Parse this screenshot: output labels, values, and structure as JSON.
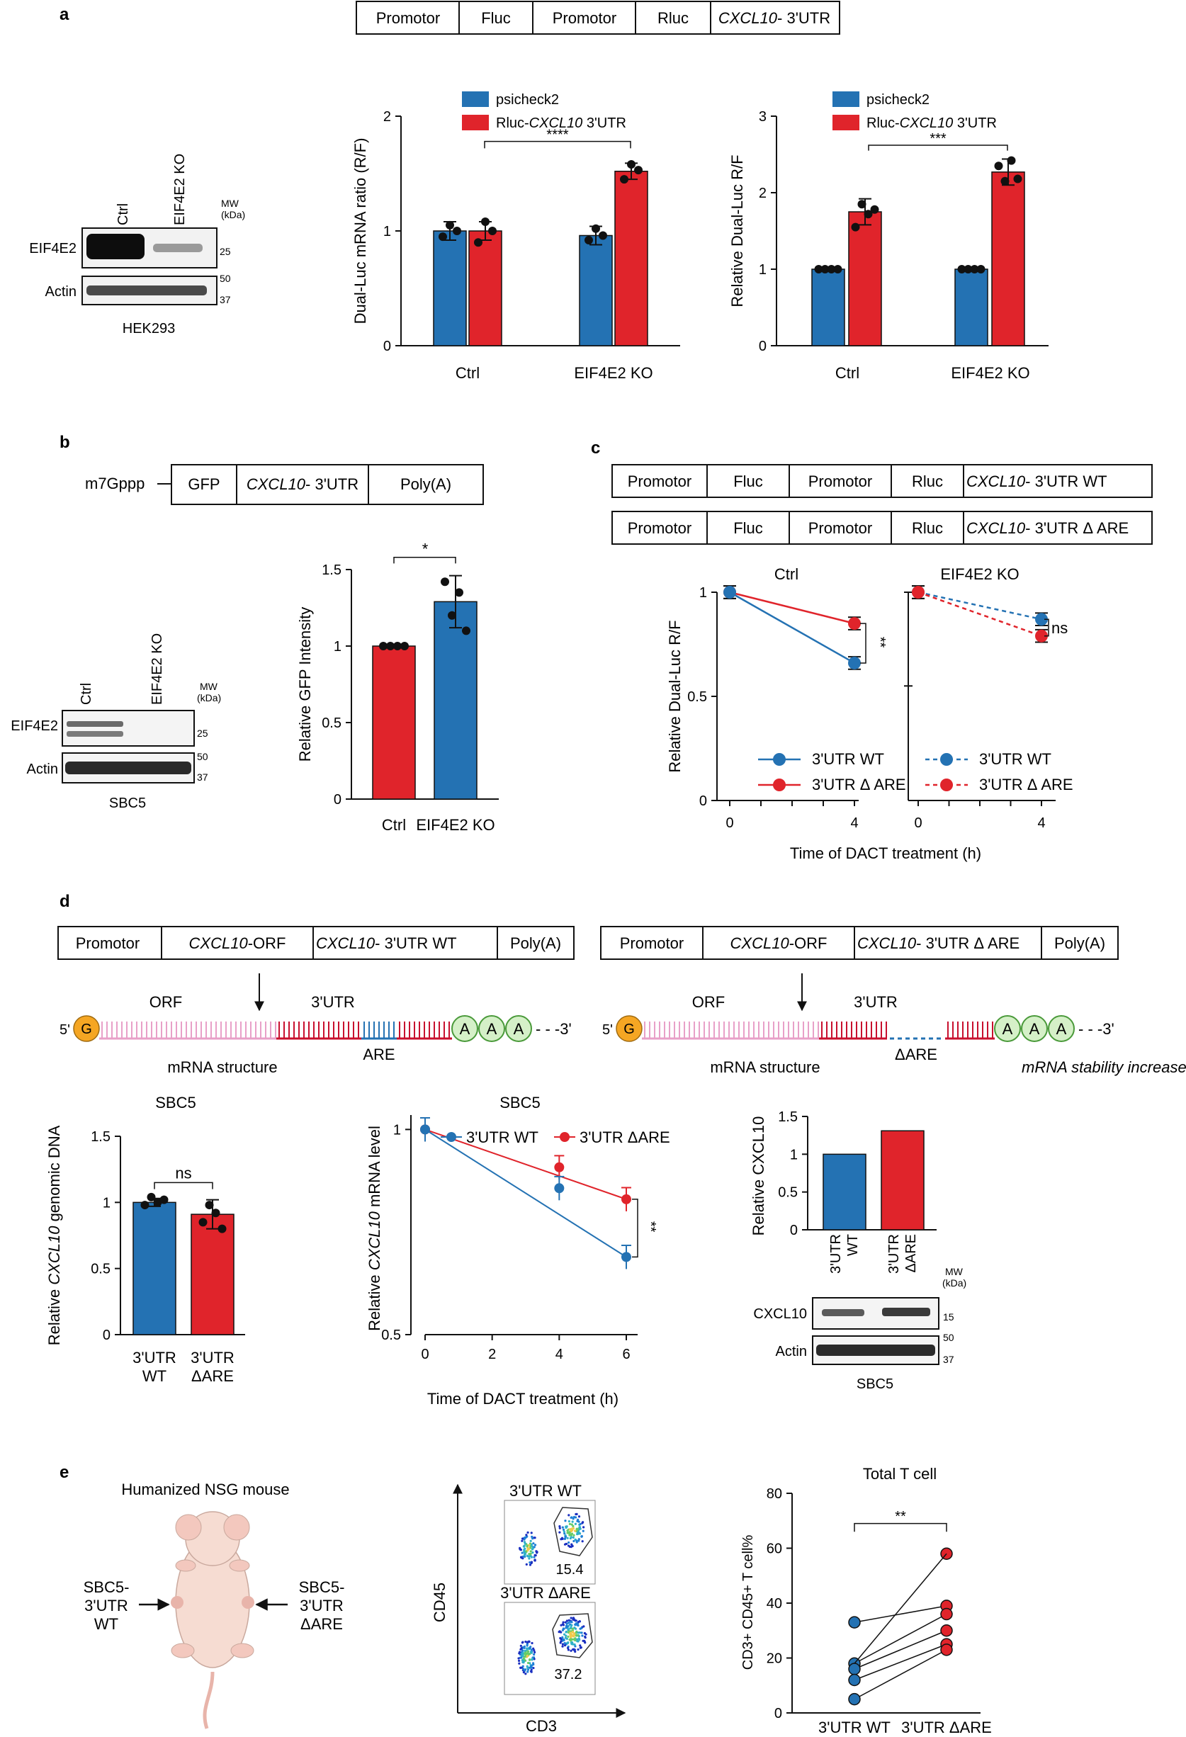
{
  "colors": {
    "blue": "#2472B3",
    "red": "#E0242B",
    "green": "#8FD07A",
    "orange": "#F5A623",
    "pink": "#E8A0C8",
    "dark_red": "#C8102E",
    "black": "#111111"
  },
  "panel_a": {
    "label": "a",
    "construct": [
      "Promotor",
      "Fluc",
      "Promotor",
      "Rluc",
      "CXCL10",
      "- 3'UTR"
    ],
    "blot": {
      "lanes": [
        "Ctrl",
        "EIF4E2 KO"
      ],
      "mw_title": [
        "MW",
        "(kDa)"
      ],
      "rows": [
        "EIF4E2",
        "Actin"
      ],
      "markers": [
        "25",
        "50",
        "37"
      ],
      "cell_line": "HEK293"
    },
    "legend": [
      "psicheck2",
      "Rluc-",
      "CXCL10",
      " 3'UTR"
    ],
    "chart_mrna": {
      "type": "bar",
      "ylabel": "Dual-Luc mRNA ratio (R/F)",
      "categories": [
        "Ctrl",
        "EIF4E2 KO"
      ],
      "ylim": [
        0,
        2
      ],
      "yticks": [
        "0",
        "1",
        "2"
      ],
      "series": [
        {
          "name": "psicheck2",
          "values": [
            1.0,
            0.96
          ]
        },
        {
          "name": "Rluc-CXCL10 3'UTR",
          "values": [
            1.0,
            1.52
          ]
        }
      ],
      "sig": "****"
    },
    "chart_luc": {
      "type": "bar",
      "ylabel": "Relative Dual-Luc R/F",
      "categories": [
        "Ctrl",
        "EIF4E2 KO"
      ],
      "ylim": [
        0,
        3
      ],
      "yticks": [
        "0",
        "1",
        "2",
        "3"
      ],
      "series": [
        {
          "name": "psicheck2",
          "values": [
            1.0,
            1.0
          ]
        },
        {
          "name": "Rluc-CXCL10 3'UTR",
          "values": [
            1.75,
            2.27
          ]
        }
      ],
      "sig": "***"
    }
  },
  "panel_b": {
    "label": "b",
    "construct": [
      "m7Gppp",
      "GFP",
      "CXCL10",
      "- 3'UTR",
      "Poly(A)"
    ],
    "blot": {
      "lanes": [
        "Ctrl",
        "EIF4E2 KO"
      ],
      "mw_title": [
        "MW",
        "(kDa)"
      ],
      "rows": [
        "EIF4E2",
        "Actin"
      ],
      "markers": [
        "25",
        "50",
        "37"
      ],
      "cell_line": "SBC5"
    },
    "chart": {
      "type": "bar",
      "ylabel": "Relative GFP Intensity",
      "categories": [
        "Ctrl",
        "EIF4E2 KO"
      ],
      "ylim": [
        0,
        1.5
      ],
      "yticks": [
        "0",
        "0.5",
        "1",
        "1.5"
      ],
      "values": [
        1.0,
        1.29
      ],
      "sig": "*"
    }
  },
  "panel_c": {
    "label": "c",
    "construct_wt": [
      "Promotor",
      "Fluc",
      "Promotor",
      "Rluc",
      "CXCL10",
      "- 3'UTR WT"
    ],
    "construct_dare": [
      "Promotor",
      "Fluc",
      "Promotor",
      "Rluc",
      "CXCL10",
      "- 3'UTR Δ ARE"
    ],
    "chart": {
      "type": "line",
      "ylabel": "Relative Dual-Luc R/F",
      "xlabel": "Time of DACT treatment (h)",
      "titles": [
        "Ctrl",
        "EIF4E2 KO"
      ],
      "x": [
        0,
        4
      ],
      "yticks": [
        "0",
        "0.5",
        "1"
      ],
      "ylim": [
        0,
        1
      ],
      "ctrl": {
        "wt": [
          1.0,
          0.66
        ],
        "dare": [
          1.0,
          0.85
        ],
        "sig": "**"
      },
      "ko": {
        "wt": [
          1.0,
          0.87
        ],
        "dare": [
          1.0,
          0.79
        ],
        "sig": "ns"
      },
      "legend": [
        "3'UTR WT",
        "3'UTR Δ ARE"
      ]
    }
  },
  "panel_d": {
    "label": "d",
    "construct_wt": [
      "Promotor",
      "CXCL10",
      "-ORF",
      "CXCL10",
      "- 3'UTR WT",
      "Poly(A)"
    ],
    "construct_dare": [
      "Promotor",
      "CXCL10",
      "-ORF",
      "CXCL10",
      "- 3'UTR Δ ARE",
      "Poly(A)"
    ],
    "mrna_left": {
      "cap": "G",
      "five": "5'",
      "orf": "ORF",
      "utr": "3'UTR",
      "are": "ARE",
      "a": "A",
      "three": "- - -3'",
      "caption": "mRNA structure"
    },
    "mrna_right": {
      "cap": "G",
      "five": "5'",
      "orf": "ORF",
      "utr": "3'UTR",
      "are": "ΔARE",
      "a": "A",
      "three": "- - -3'",
      "caption": "mRNA structure",
      "note": "mRNA stability increases"
    },
    "chart_dna": {
      "type": "bar",
      "title": "SBC5",
      "ylabel_pre": "Relative ",
      "ylabel_it": "CXCL10",
      "ylabel_post": " genomic DNA",
      "categories": [
        [
          "3'UTR",
          "WT"
        ],
        [
          "3'UTR",
          "ΔARE"
        ]
      ],
      "values": [
        1.0,
        0.91
      ],
      "ylim": [
        0,
        1.5
      ],
      "yticks": [
        "0",
        "0.5",
        "1",
        "1.5"
      ],
      "sig": "ns"
    },
    "chart_mrna": {
      "type": "line",
      "title": "SBC5",
      "ylabel_pre": "Relative ",
      "ylabel_it": "CXCL10",
      "ylabel_post": " mRNA level",
      "xlabel": "Time of DACT treatment (h)",
      "x": [
        0,
        4,
        6
      ],
      "xticks": [
        "0",
        "2",
        "4",
        "6"
      ],
      "yticks": [
        "0.5",
        "1"
      ],
      "wt": [
        1.0,
        0.82,
        0.65
      ],
      "dare": [
        1.0,
        0.88,
        0.79
      ],
      "legend": [
        "3'UTR WT",
        "3'UTR ΔARE"
      ],
      "sig": "**"
    },
    "chart_prot": {
      "type": "bar",
      "ylabel": "Relative CXCL10",
      "categories": [
        [
          "3'UTR",
          "WT"
        ],
        [
          "3'UTR",
          "ΔARE"
        ]
      ],
      "values": [
        1.0,
        1.31
      ],
      "ylim": [
        0,
        1.5
      ],
      "yticks": [
        "0",
        "0.5",
        "1",
        "1.5"
      ]
    },
    "blot": {
      "mw_title": [
        "MW",
        "(kDa)"
      ],
      "rows": [
        "CXCL10",
        "Actin"
      ],
      "markers": [
        "15",
        "50",
        "37"
      ],
      "cell_line": "SBC5"
    }
  },
  "panel_e": {
    "label": "e",
    "mouse_title": "Humanized NSG mouse",
    "left_label": [
      "SBC5-",
      "3'UTR",
      "WT"
    ],
    "right_label": [
      "SBC5-",
      "3'UTR",
      "ΔARE"
    ],
    "flow": {
      "titles": [
        "3'UTR WT",
        "3'UTR ΔARE"
      ],
      "values": [
        "15.4",
        "37.2"
      ],
      "xlabel": "CD3",
      "ylabel": "CD45"
    },
    "chart": {
      "type": "scatter",
      "title": "Total T cell",
      "ylabel": "CD3+ CD45+ T cell%",
      "categories": [
        "3'UTR WT",
        "3'UTR ΔARE"
      ],
      "ylim": [
        0,
        80
      ],
      "yticks": [
        "0",
        "20",
        "40",
        "60",
        "80"
      ],
      "pairs": [
        [
          33,
          39
        ],
        [
          18,
          36
        ],
        [
          16,
          30
        ],
        [
          12,
          25
        ],
        [
          5,
          23
        ]
      ],
      "sig": "**"
    }
  }
}
